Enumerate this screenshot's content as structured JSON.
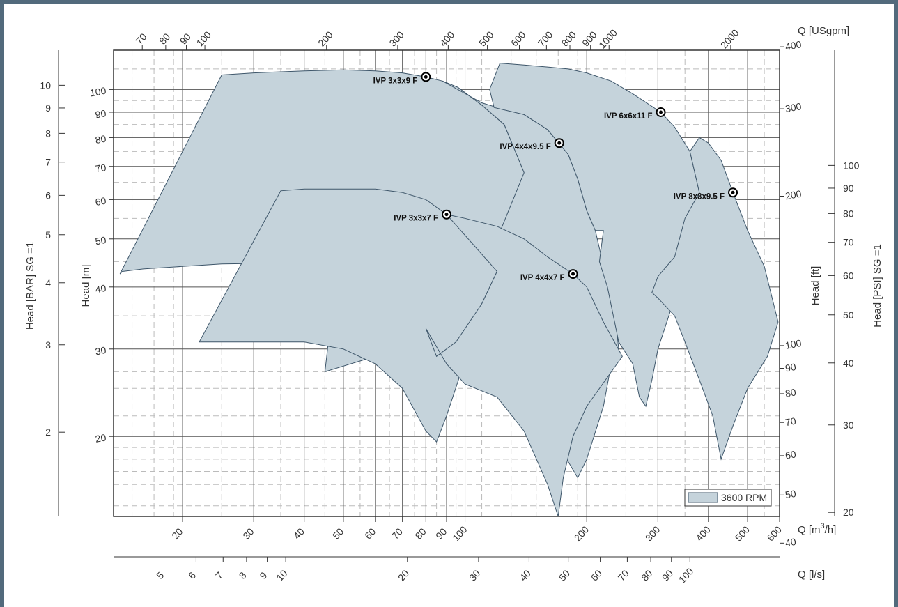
{
  "chart_data": {
    "type": "area",
    "title": "",
    "colors": {
      "fill": "#c5d3db",
      "edge": "#3e566a",
      "grid": "#555555",
      "subgrid": "#bbbbbb",
      "frame": "#526a7c"
    },
    "x_scale": "log",
    "y_scale": "log",
    "xlim_m3h": [
      13.5,
      600
    ],
    "ylim_m": [
      13.8,
      120
    ],
    "grid": true,
    "legend": {
      "position": "bottom-right",
      "entries": [
        {
          "label": "3600 RPM",
          "color": "#c5d3db"
        }
      ]
    },
    "axes": {
      "x_m3h": {
        "label": "Q [m³/h]",
        "label_main": "Q [m",
        "label_sup": "3",
        "label_end": "/h]",
        "ticks": [
          "20",
          "30",
          "40",
          "50",
          "60",
          "70",
          "80",
          "90",
          "100",
          "200",
          "300",
          "400",
          "500",
          "600"
        ]
      },
      "x_usgpm": {
        "label": "Q [USgpm]",
        "ticks": [
          "70",
          "80",
          "90",
          "100",
          "200",
          "300",
          "400",
          "500",
          "600",
          "700",
          "800",
          "900",
          "1000",
          "2000"
        ]
      },
      "x_ls": {
        "label": "Q [l/s]",
        "ticks": [
          "5",
          "6",
          "7",
          "8",
          "9",
          "10",
          "20",
          "30",
          "40",
          "50",
          "60",
          "70",
          "80",
          "90",
          "100"
        ]
      },
      "y_m": {
        "label": "Head [m]",
        "ticks": [
          "20",
          "30",
          "40",
          "50",
          "60",
          "70",
          "80",
          "90",
          "100"
        ]
      },
      "y_bar": {
        "label": "Head [BAR]  SG =1",
        "ticks": [
          "2",
          "3",
          "4",
          "5",
          "6",
          "7",
          "8",
          "9",
          "10"
        ]
      },
      "y_ft": {
        "label": "Head [ft]",
        "ticks": [
          "40",
          "50",
          "60",
          "70",
          "80",
          "90",
          "100",
          "200",
          "300",
          "400"
        ]
      },
      "y_psi": {
        "label": "Head [PSI]  SG =1",
        "ticks": [
          "20",
          "30",
          "40",
          "50",
          "60",
          "70",
          "80",
          "90",
          "100"
        ]
      }
    },
    "series": [
      {
        "name": "IVP 3x3x9 F",
        "bep": {
          "q_m3h": 80,
          "h_m": 106
        },
        "region": [
          [
            14,
            42.5
          ],
          [
            14.2,
            43
          ],
          [
            16,
            43.5
          ],
          [
            20,
            44
          ],
          [
            25,
            44.5
          ],
          [
            30,
            44.6
          ],
          [
            35,
            44.8
          ],
          [
            40,
            42.2
          ],
          [
            50,
            35.5
          ],
          [
            60,
            29
          ],
          [
            70,
            25
          ],
          [
            90,
            35.5
          ],
          [
            100,
            35.8
          ],
          [
            110,
            40
          ],
          [
            120,
            50
          ],
          [
            130,
            57
          ],
          [
            140,
            68
          ],
          [
            125,
            85
          ],
          [
            110,
            93
          ],
          [
            96,
            101
          ],
          [
            88,
            104
          ],
          [
            80,
            106
          ],
          [
            70,
            108
          ],
          [
            60,
            109
          ],
          [
            50,
            109.5
          ],
          [
            40,
            109
          ],
          [
            30,
            108
          ],
          [
            25,
            107
          ]
        ]
      },
      {
        "name": "IVP 4x4x9.5 F",
        "bep": {
          "q_m3h": 171,
          "h_m": 78
        },
        "region": [
          [
            140,
            68
          ],
          [
            120,
            50
          ],
          [
            110,
            40
          ],
          [
            100,
            35.8
          ],
          [
            90,
            35.5
          ],
          [
            80,
            45
          ],
          [
            70,
            56
          ],
          [
            60,
            57
          ],
          [
            50,
            56.5
          ],
          [
            45,
            27
          ],
          [
            60,
            29
          ],
          [
            80,
            29
          ],
          [
            100,
            27
          ],
          [
            125,
            24
          ],
          [
            150,
            21.5
          ],
          [
            175,
            18.5
          ],
          [
            190,
            16.5
          ],
          [
            200,
            18
          ],
          [
            220,
            23
          ],
          [
            230,
            28
          ],
          [
            240,
            30
          ],
          [
            235,
            35
          ],
          [
            210,
            52
          ],
          [
            200,
            57
          ],
          [
            190,
            66
          ],
          [
            180,
            74
          ],
          [
            171,
            78
          ],
          [
            160,
            83
          ],
          [
            140,
            89
          ],
          [
            120,
            92
          ],
          [
            110,
            94
          ],
          [
            88,
            104
          ],
          [
            96,
            101
          ],
          [
            110,
            93
          ],
          [
            125,
            85
          ]
        ]
      },
      {
        "name": "IVP 3x3x7 F",
        "bep": {
          "q_m3h": 90,
          "h_m": 56
        },
        "region": [
          [
            22,
            31
          ],
          [
            26,
            31
          ],
          [
            30,
            31
          ],
          [
            40,
            31
          ],
          [
            50,
            30
          ],
          [
            60,
            28
          ],
          [
            70,
            25
          ],
          [
            80,
            20.5
          ],
          [
            85,
            19.5
          ],
          [
            90,
            22
          ],
          [
            100,
            28.5
          ],
          [
            110,
            37
          ],
          [
            120,
            43
          ],
          [
            110,
            48
          ],
          [
            100,
            52
          ],
          [
            90,
            56
          ],
          [
            80,
            60
          ],
          [
            70,
            62
          ],
          [
            60,
            63
          ],
          [
            50,
            63
          ],
          [
            40,
            63
          ],
          [
            35,
            62.5
          ]
        ]
      },
      {
        "name": "IVP 4x4x7 F",
        "bep": {
          "q_m3h": 185,
          "h_m": 42.5
        },
        "region": [
          [
            90,
            56
          ],
          [
            100,
            55
          ],
          [
            120,
            53
          ],
          [
            140,
            50
          ],
          [
            160,
            46
          ],
          [
            185,
            42.5
          ],
          [
            200,
            40
          ],
          [
            220,
            34
          ],
          [
            245,
            29
          ],
          [
            200,
            23
          ],
          [
            185,
            20
          ],
          [
            175,
            16.5
          ],
          [
            170,
            13.8
          ],
          [
            160,
            16
          ],
          [
            140,
            20.5
          ],
          [
            120,
            24
          ],
          [
            100,
            25.5
          ],
          [
            90,
            28
          ],
          [
            80,
            33
          ],
          [
            85,
            29
          ],
          [
            95,
            31
          ],
          [
            110,
            37
          ],
          [
            120,
            43
          ]
        ]
      },
      {
        "name": "IVP 6x6x11 F",
        "bep": {
          "q_m3h": 305,
          "h_m": 90
        },
        "region": [
          [
            122,
            113
          ],
          [
            140,
            112
          ],
          [
            160,
            111
          ],
          [
            180,
            110
          ],
          [
            200,
            108
          ],
          [
            230,
            104
          ],
          [
            260,
            98
          ],
          [
            305,
            90
          ],
          [
            330,
            84
          ],
          [
            360,
            75
          ],
          [
            380,
            62
          ],
          [
            350,
            45
          ],
          [
            330,
            38
          ],
          [
            300,
            30
          ],
          [
            290,
            26
          ],
          [
            280,
            23
          ],
          [
            270,
            24
          ],
          [
            260,
            28
          ],
          [
            240,
            31
          ],
          [
            225,
            40
          ],
          [
            215,
            45
          ],
          [
            220,
            52
          ],
          [
            210,
            52
          ],
          [
            200,
            57
          ],
          [
            190,
            66
          ],
          [
            180,
            74
          ],
          [
            160,
            83
          ],
          [
            140,
            89
          ],
          [
            118,
            92
          ],
          [
            115,
            100
          ]
        ]
      },
      {
        "name": "IVP 8x8x9.5 F",
        "bep": {
          "q_m3h": 460,
          "h_m": 62
        },
        "region": [
          [
            360,
            75
          ],
          [
            380,
            80
          ],
          [
            400,
            78
          ],
          [
            430,
            72
          ],
          [
            460,
            62
          ],
          [
            500,
            52
          ],
          [
            550,
            44
          ],
          [
            595,
            34
          ],
          [
            560,
            29
          ],
          [
            500,
            25
          ],
          [
            460,
            21
          ],
          [
            430,
            18
          ],
          [
            410,
            22
          ],
          [
            380,
            26
          ],
          [
            350,
            31
          ],
          [
            330,
            35
          ],
          [
            300,
            38
          ],
          [
            290,
            39
          ],
          [
            300,
            42
          ],
          [
            330,
            46
          ],
          [
            350,
            55
          ],
          [
            380,
            62
          ]
        ]
      }
    ]
  }
}
